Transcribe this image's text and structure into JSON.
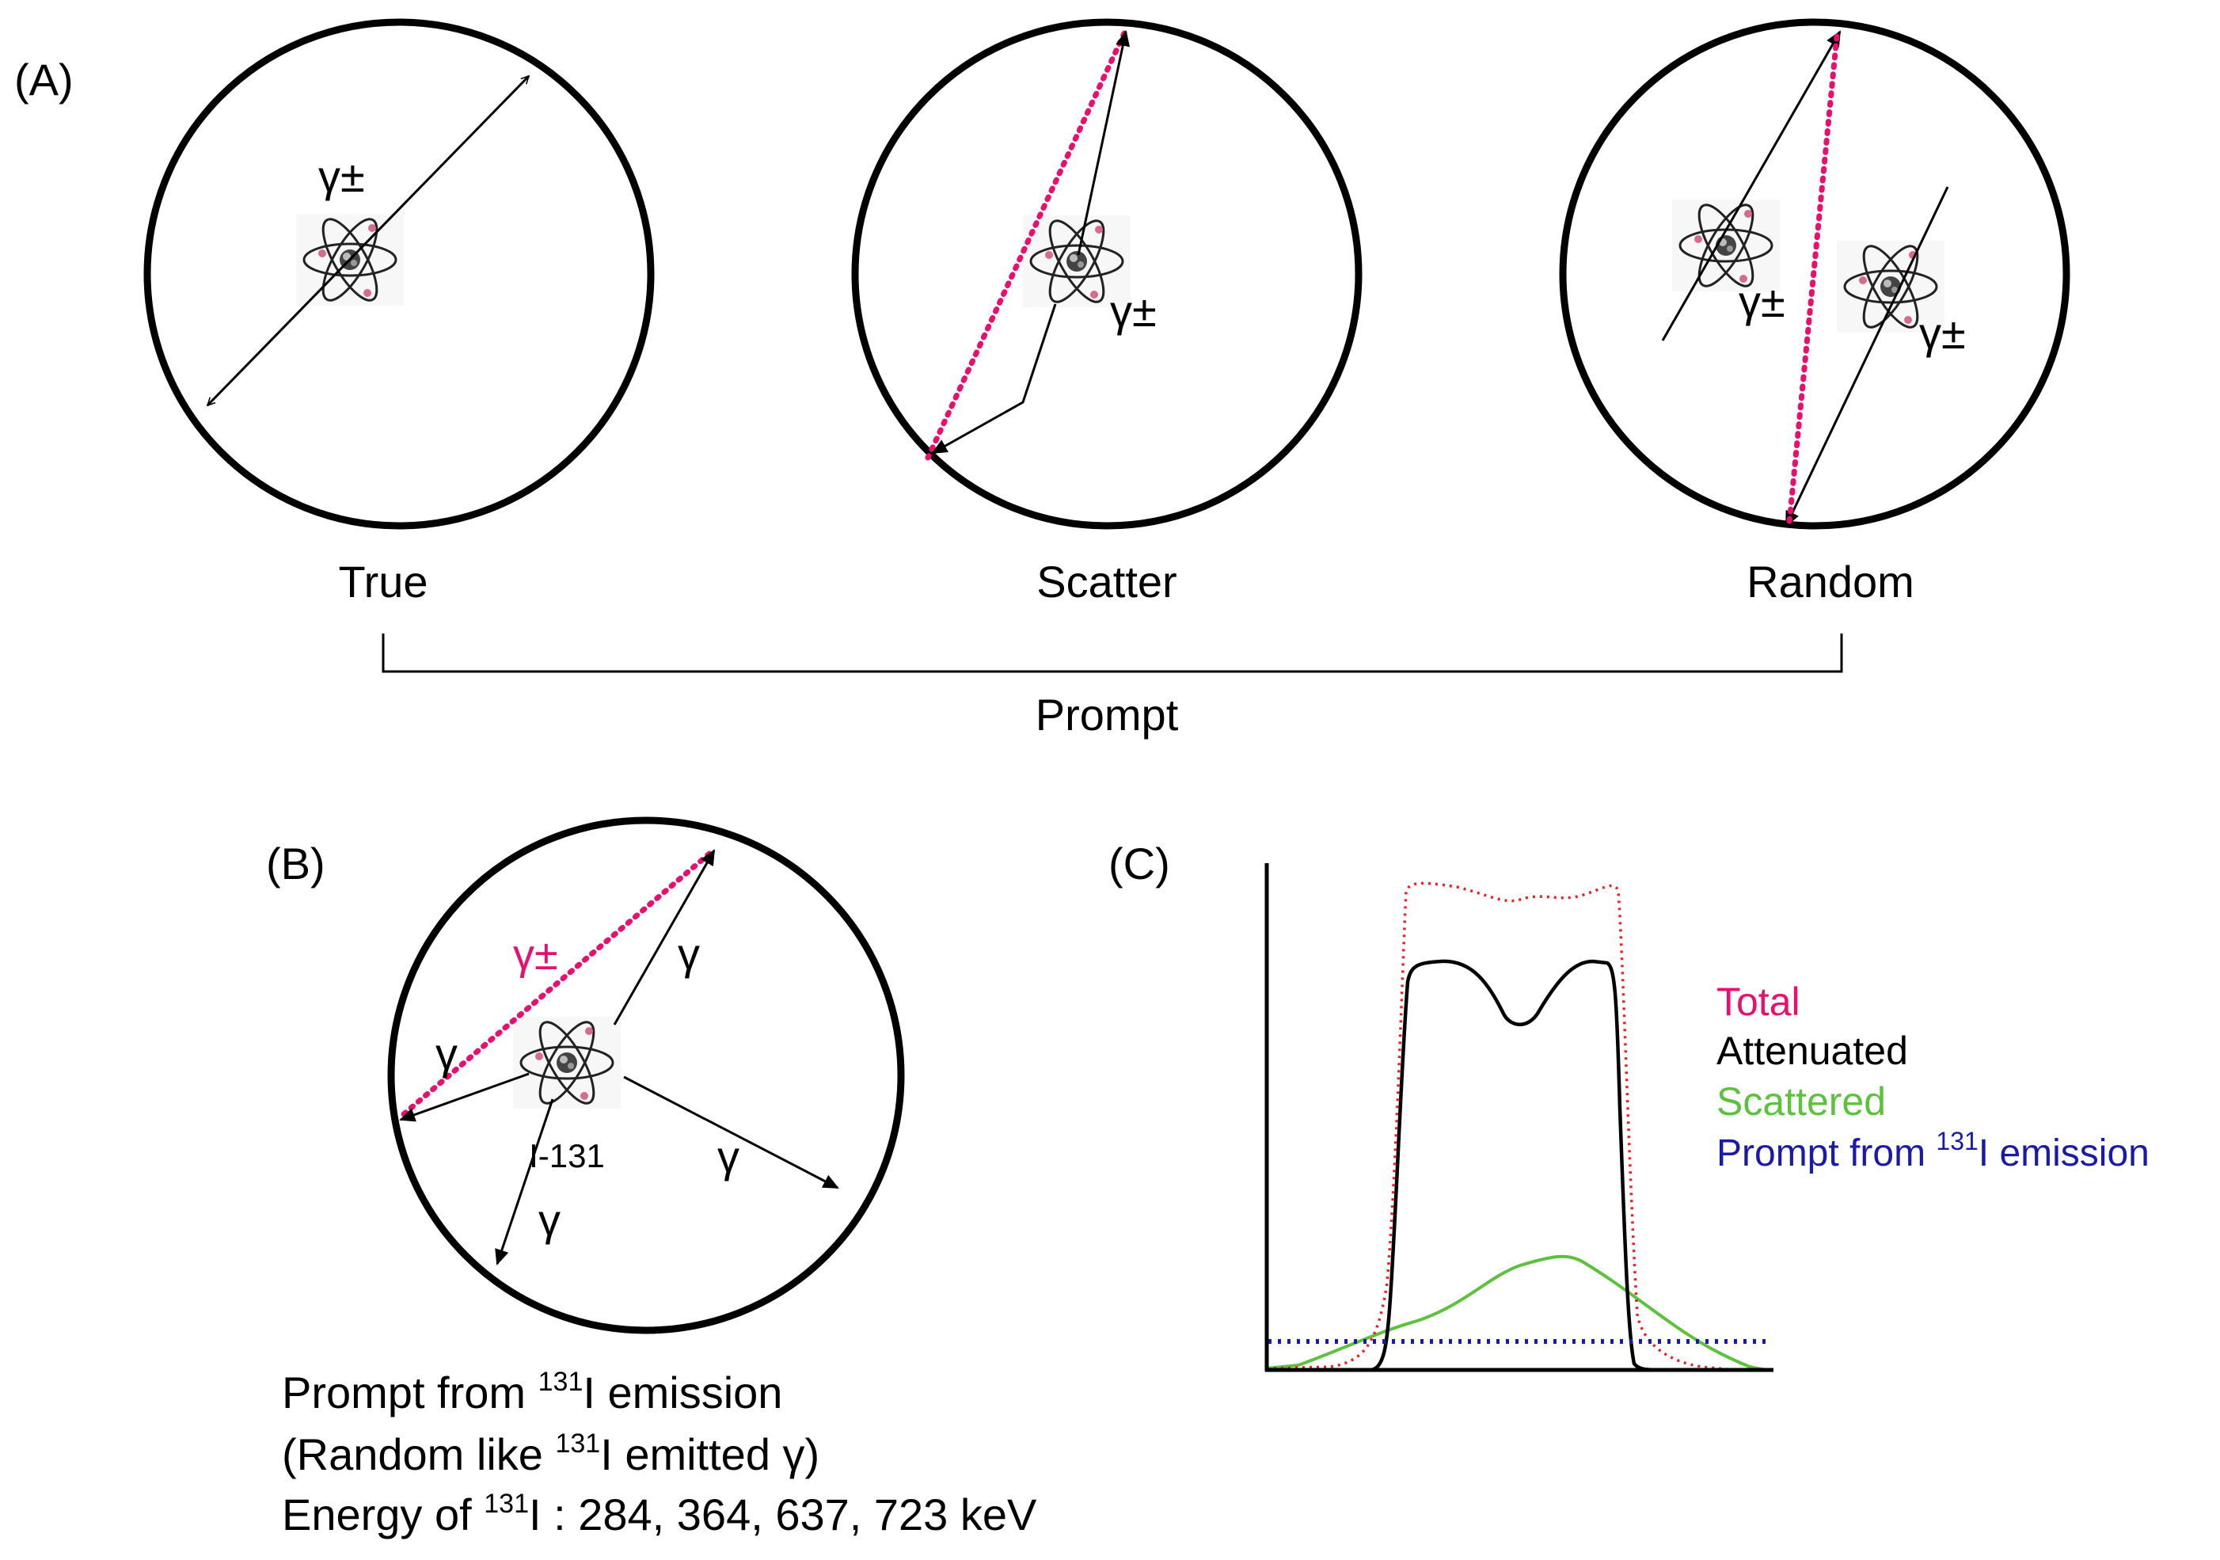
{
  "panel_a": {
    "label": "(A)",
    "true_label": "True",
    "scatter_label": "Scatter",
    "random_label": "Random",
    "prompt_label": "Prompt",
    "annihilation": "γ±"
  },
  "panel_b": {
    "label": "(B)",
    "annihilation": "γ±",
    "gamma": "γ",
    "isotope": "I-131",
    "caption": {
      "line1_before": "Prompt from ",
      "line1_sup": "131",
      "line1_after": "I emission",
      "line2_before": "(Random like ",
      "line2_sup": "131",
      "line2_after": "I emitted γ)",
      "line3_before": "Energy of ",
      "line3_sup": "131",
      "line3_after": "I : 284, 364, 637, 723 keV"
    }
  },
  "panel_c": {
    "label": "(C)",
    "legend": {
      "total": "Total",
      "attenuated": "Attenuated",
      "scattered": "Scattered",
      "prompt_before": "Prompt from ",
      "prompt_sup": "131",
      "prompt_after": "I emission"
    }
  },
  "colors": {
    "total": "#e8106e",
    "attenuated": "#000000",
    "scattered": "#5cc13c",
    "prompt": "#1a1aa8",
    "line_of_response": "#e8106e"
  }
}
